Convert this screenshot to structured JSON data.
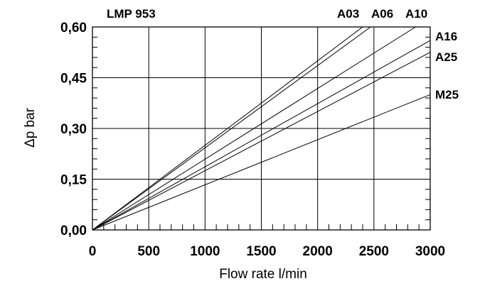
{
  "chart_data": {
    "type": "line",
    "title": "LMP 953",
    "xlabel": "Flow rate l/min",
    "ylabel": "Δp bar",
    "xlim": [
      0,
      3000
    ],
    "ylim": [
      0,
      0.6
    ],
    "x_ticks": [
      "0",
      "500",
      "1000",
      "1500",
      "2000",
      "2500",
      "3000"
    ],
    "y_ticks": [
      "0,00",
      "0,15",
      "0,30",
      "0,45",
      "0,60"
    ],
    "grid": true,
    "series": [
      {
        "name": "A03",
        "x": [
          0,
          2400
        ],
        "y": [
          0,
          0.6
        ]
      },
      {
        "name": "A06",
        "x": [
          0,
          2470
        ],
        "y": [
          0,
          0.6
        ]
      },
      {
        "name": "A10",
        "x": [
          0,
          2870
        ],
        "y": [
          0,
          0.6
        ]
      },
      {
        "name": "A16",
        "x": [
          0,
          3000
        ],
        "y": [
          0,
          0.56
        ]
      },
      {
        "name": "A25",
        "x": [
          0,
          3000
        ],
        "y": [
          0,
          0.525
        ]
      },
      {
        "name": "M25",
        "x": [
          0,
          3000
        ],
        "y": [
          0,
          0.4
        ]
      }
    ]
  }
}
